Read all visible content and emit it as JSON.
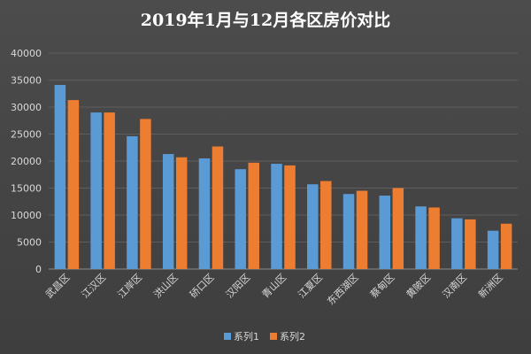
{
  "chart_data": {
    "type": "bar",
    "title": "2019年1月与12月各区房价对比",
    "xlabel": "",
    "ylabel": "",
    "ylim": [
      0,
      40000
    ],
    "yticks": [
      0,
      5000,
      10000,
      15000,
      20000,
      25000,
      30000,
      35000,
      40000
    ],
    "grid": true,
    "legend_position": "bottom",
    "categories": [
      "武昌区",
      "江汉区",
      "江岸区",
      "洪山区",
      "硚口区",
      "汉阳区",
      "青山区",
      "江夏区",
      "东西湖区",
      "蔡甸区",
      "黄陂区",
      "汉南区",
      "新洲区"
    ],
    "series": [
      {
        "name": "系列1",
        "color": "#5b9bd5",
        "values": [
          34100,
          29000,
          24600,
          21300,
          20500,
          18500,
          19500,
          15700,
          13900,
          13600,
          11600,
          9400,
          7100
        ]
      },
      {
        "name": "系列2",
        "color": "#ed7d31",
        "values": [
          31300,
          29000,
          27800,
          20700,
          22700,
          19700,
          19200,
          16300,
          14500,
          15000,
          11400,
          9200,
          8400
        ]
      }
    ]
  }
}
